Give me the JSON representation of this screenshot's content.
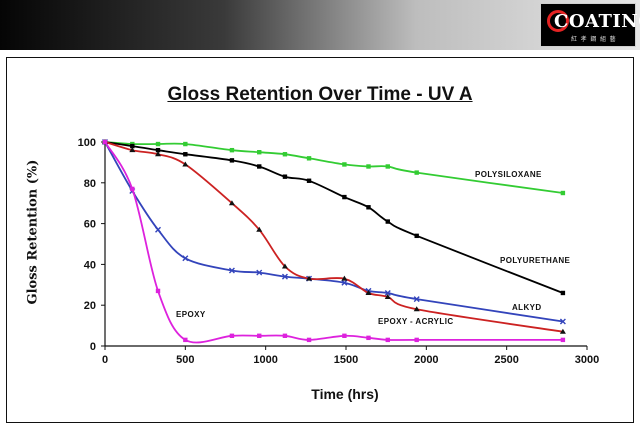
{
  "logo": {
    "word": "COATING",
    "sub": "紅 孝 鋼 組 藝"
  },
  "chart_data": {
    "type": "line",
    "title": "Gloss Retention Over Time - UV A",
    "xlabel": "Time (hrs)",
    "ylabel": "Gloss Retention (%)",
    "xlim": [
      0,
      3000
    ],
    "ylim": [
      0,
      100
    ],
    "xticks": [
      0,
      500,
      1000,
      1500,
      2000,
      2500,
      3000
    ],
    "yticks": [
      0,
      20,
      40,
      60,
      80,
      100
    ],
    "grid": false,
    "series": [
      {
        "name": "POLYSILOXANE",
        "color": "#33cc33",
        "marker": "square",
        "x": [
          0,
          170,
          330,
          500,
          790,
          960,
          1120,
          1270,
          1490,
          1640,
          1760,
          1940,
          2850
        ],
        "y": [
          100,
          99,
          99,
          99,
          96,
          95,
          94,
          92,
          89,
          88,
          88,
          85,
          75
        ]
      },
      {
        "name": "POLYURETHANE",
        "color": "#000000",
        "marker": "square",
        "x": [
          0,
          170,
          330,
          500,
          790,
          960,
          1120,
          1270,
          1490,
          1640,
          1760,
          1940,
          2850
        ],
        "y": [
          100,
          98,
          96,
          94,
          91,
          88,
          83,
          81,
          73,
          68,
          61,
          54,
          26
        ]
      },
      {
        "name": "ALKYD",
        "color": "#3344bb",
        "marker": "x",
        "x": [
          0,
          170,
          330,
          500,
          790,
          960,
          1120,
          1270,
          1490,
          1640,
          1760,
          1940,
          2850
        ],
        "y": [
          100,
          76,
          57,
          43,
          37,
          36,
          34,
          33,
          31,
          27,
          26,
          23,
          12
        ]
      },
      {
        "name": "EPOXY - ACRYLIC",
        "color": "#cc2222",
        "marker": "triangle",
        "x": [
          0,
          170,
          330,
          500,
          790,
          960,
          1120,
          1270,
          1490,
          1640,
          1760,
          1940,
          2850
        ],
        "y": [
          100,
          96,
          94,
          89,
          70,
          57,
          39,
          33,
          33,
          26,
          24,
          18,
          7
        ]
      },
      {
        "name": "EPOXY",
        "color": "#dd22dd",
        "marker": "square",
        "x": [
          0,
          170,
          330,
          500,
          790,
          960,
          1120,
          1270,
          1490,
          1640,
          1760,
          1940,
          2850
        ],
        "y": [
          100,
          77,
          27,
          3,
          5,
          5,
          5,
          3,
          5,
          4,
          3,
          3,
          3
        ]
      }
    ]
  }
}
